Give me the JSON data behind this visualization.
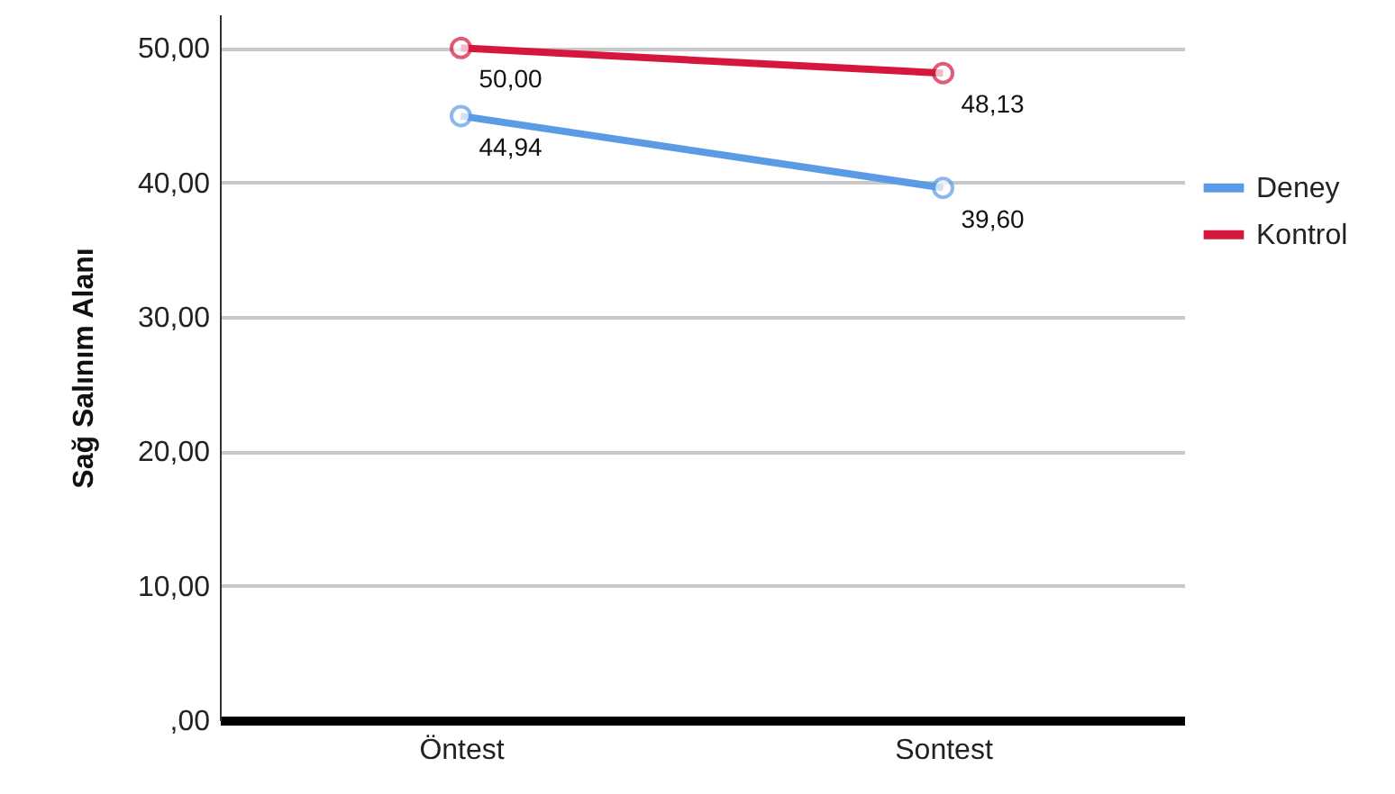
{
  "chart_data": {
    "type": "line",
    "ylabel": "Sağ Salınım Alanı",
    "categories": [
      "Öntest",
      "Sontest"
    ],
    "series": [
      {
        "name": "Deney",
        "color": "#5b9be6",
        "values": [
          44.94,
          39.6
        ],
        "value_labels": [
          "44,94",
          "39,60"
        ]
      },
      {
        "name": "Kontrol",
        "color": "#d6173d",
        "values": [
          50.0,
          48.13
        ],
        "value_labels": [
          "50,00",
          "48,13"
        ]
      }
    ],
    "ylim": [
      0,
      52.5
    ],
    "yticks": [
      {
        "value": 0,
        "label": ",00"
      },
      {
        "value": 10,
        "label": "10,00"
      },
      {
        "value": 20,
        "label": "20,00"
      },
      {
        "value": 30,
        "label": "30,00"
      },
      {
        "value": 40,
        "label": "40,00"
      },
      {
        "value": 50,
        "label": "50,00"
      }
    ],
    "grid": "y",
    "legend": "right",
    "marker": "circle",
    "line_style": "solid"
  }
}
